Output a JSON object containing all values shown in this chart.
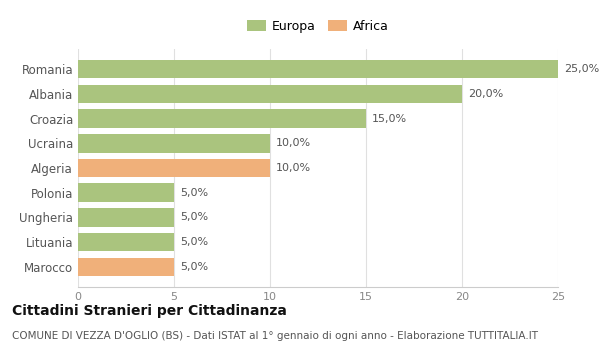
{
  "categories": [
    "Romania",
    "Albania",
    "Croazia",
    "Ucraina",
    "Algeria",
    "Polonia",
    "Ungheria",
    "Lituania",
    "Marocco"
  ],
  "values": [
    25.0,
    20.0,
    15.0,
    10.0,
    10.0,
    5.0,
    5.0,
    5.0,
    5.0
  ],
  "colors": [
    "#aac47e",
    "#aac47e",
    "#aac47e",
    "#aac47e",
    "#f0b07a",
    "#aac47e",
    "#aac47e",
    "#aac47e",
    "#f0b07a"
  ],
  "labels": [
    "25,0%",
    "20,0%",
    "15,0%",
    "10,0%",
    "10,0%",
    "5,0%",
    "5,0%",
    "5,0%",
    "5,0%"
  ],
  "europa_color": "#aac47e",
  "africa_color": "#f0b07a",
  "xlim": [
    0,
    25
  ],
  "xticks": [
    0,
    5,
    10,
    15,
    20,
    25
  ],
  "title": "Cittadini Stranieri per Cittadinanza",
  "subtitle": "COMUNE DI VEZZA D'OGLIO (BS) - Dati ISTAT al 1° gennaio di ogni anno - Elaborazione TUTTITALIA.IT",
  "title_fontsize": 10,
  "subtitle_fontsize": 7.5,
  "background_color": "#ffffff",
  "bar_height": 0.75
}
